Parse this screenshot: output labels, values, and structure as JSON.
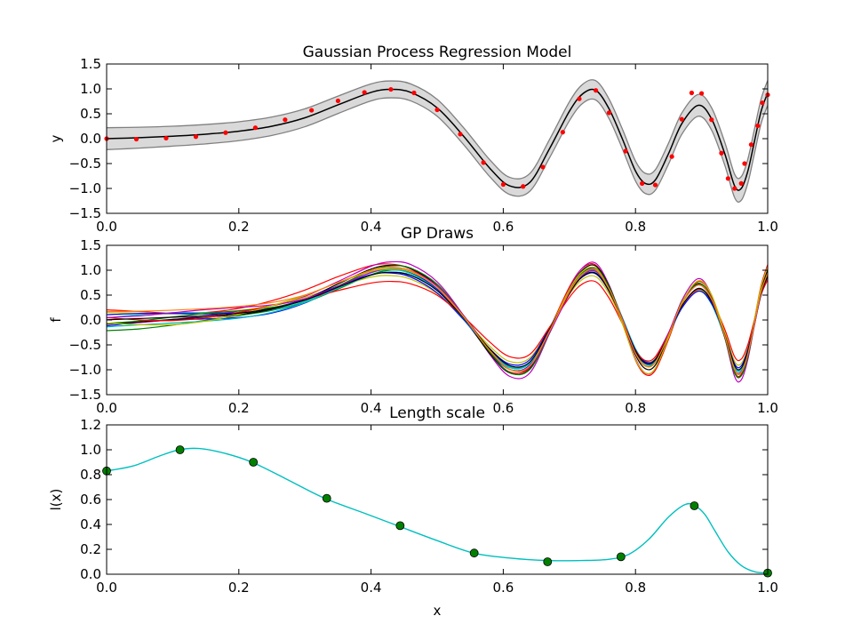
{
  "colors": {
    "mean": "#000000",
    "band_fill": "#d9d9d9",
    "band_edge": "#808080",
    "observations": "#ff0000",
    "length_curve": "#00bfbf",
    "length_points": "#008000",
    "draws": [
      "#0000ff",
      "#008000",
      "#ff0000",
      "#00bfbf",
      "#bf00bf",
      "#bfbf00",
      "#000000",
      "#0000ff",
      "#008000",
      "#ff0000",
      "#00bfbf",
      "#bf00bf",
      "#bfbf00",
      "#000000",
      "#ff7f0e"
    ]
  },
  "chart_data": [
    {
      "type": "line",
      "title": "Gaussian Process Regression Model",
      "xlabel": "",
      "ylabel": "y",
      "xlim": [
        0,
        1
      ],
      "ylim": [
        -1.5,
        1.5
      ],
      "xticks": [
        "0.0",
        "0.2",
        "0.4",
        "0.6",
        "0.8",
        "1.0"
      ],
      "yticks": [
        "−1.5",
        "−1.0",
        "−0.5",
        "0.0",
        "0.5",
        "1.0",
        "1.5"
      ],
      "mean": {
        "x": [
          0,
          0.05,
          0.1,
          0.15,
          0.2,
          0.25,
          0.3,
          0.35,
          0.4,
          0.43,
          0.46,
          0.5,
          0.54,
          0.58,
          0.61,
          0.64,
          0.67,
          0.7,
          0.72,
          0.74,
          0.76,
          0.78,
          0.8,
          0.815,
          0.83,
          0.85,
          0.87,
          0.895,
          0.915,
          0.935,
          0.95,
          0.96,
          0.97,
          0.98,
          0.99,
          1.0
        ],
        "y": [
          0.0,
          0.02,
          0.05,
          0.09,
          0.15,
          0.25,
          0.42,
          0.68,
          0.93,
          0.99,
          0.93,
          0.62,
          0.05,
          -0.6,
          -0.95,
          -0.88,
          -0.2,
          0.55,
          0.9,
          0.97,
          0.6,
          0.0,
          -0.65,
          -0.9,
          -0.83,
          -0.3,
          0.3,
          0.67,
          0.4,
          -0.3,
          -0.95,
          -1.0,
          -0.65,
          -0.05,
          0.55,
          0.92
        ]
      },
      "band_halfwidth": {
        "x": [
          0,
          0.1,
          0.2,
          0.3,
          0.4,
          0.5,
          0.6,
          0.7,
          0.8,
          0.9,
          1.0
        ],
        "y": [
          0.22,
          0.2,
          0.19,
          0.18,
          0.17,
          0.17,
          0.17,
          0.19,
          0.2,
          0.22,
          0.25
        ]
      },
      "observations": {
        "x": [
          0.0,
          0.045,
          0.09,
          0.135,
          0.18,
          0.225,
          0.27,
          0.31,
          0.35,
          0.39,
          0.43,
          0.465,
          0.5,
          0.535,
          0.57,
          0.6,
          0.63,
          0.66,
          0.69,
          0.715,
          0.74,
          0.76,
          0.785,
          0.81,
          0.83,
          0.855,
          0.87,
          0.885,
          0.9,
          0.915,
          0.93,
          0.94,
          0.95,
          0.96,
          0.965,
          0.975,
          0.985,
          0.992,
          1.0
        ],
        "y": [
          0.0,
          -0.01,
          0.01,
          0.04,
          0.12,
          0.22,
          0.38,
          0.57,
          0.76,
          0.93,
          0.99,
          0.92,
          0.58,
          0.09,
          -0.48,
          -0.92,
          -0.96,
          -0.57,
          0.13,
          0.8,
          0.97,
          0.52,
          -0.25,
          -0.9,
          -0.93,
          -0.36,
          0.39,
          0.92,
          0.91,
          0.38,
          -0.29,
          -0.8,
          -1.0,
          -0.9,
          -0.5,
          -0.12,
          0.26,
          0.72,
          0.88
        ]
      }
    },
    {
      "type": "line",
      "title": "GP Draws",
      "xlabel": "",
      "ylabel": "f",
      "xlim": [
        0,
        1
      ],
      "ylim": [
        -1.5,
        1.5
      ],
      "xticks": [
        "0.0",
        "0.2",
        "0.4",
        "0.6",
        "0.8",
        "1.0"
      ],
      "yticks": [
        "−1.5",
        "−1.0",
        "−0.5",
        "0.0",
        "0.5",
        "1.0",
        "1.5"
      ],
      "base_curve": {
        "x": [
          0,
          0.05,
          0.1,
          0.15,
          0.2,
          0.25,
          0.3,
          0.35,
          0.4,
          0.43,
          0.46,
          0.5,
          0.54,
          0.58,
          0.61,
          0.64,
          0.67,
          0.7,
          0.72,
          0.74,
          0.76,
          0.78,
          0.8,
          0.815,
          0.83,
          0.85,
          0.87,
          0.895,
          0.915,
          0.935,
          0.95,
          0.96,
          0.97,
          0.98,
          0.99,
          1.0
        ],
        "y": [
          0.0,
          0.02,
          0.05,
          0.09,
          0.15,
          0.25,
          0.42,
          0.68,
          0.93,
          0.99,
          0.93,
          0.62,
          0.05,
          -0.6,
          -0.95,
          -0.88,
          -0.2,
          0.55,
          0.9,
          0.97,
          0.6,
          0.0,
          -0.65,
          -0.9,
          -0.83,
          -0.3,
          0.3,
          0.67,
          0.4,
          -0.3,
          -0.95,
          -1.0,
          -0.65,
          -0.05,
          0.55,
          0.92
        ]
      },
      "draw_offsets": [
        {
          "offset": -0.12,
          "scale": 1.0,
          "wiggle": 0.05
        },
        {
          "offset": -0.18,
          "scale": 1.05,
          "wiggle": -0.04
        },
        {
          "offset": 0.15,
          "scale": 1.15,
          "wiggle": 0.06
        },
        {
          "offset": 0.05,
          "scale": 0.95,
          "wiggle": -0.06
        },
        {
          "offset": -0.05,
          "scale": 1.2,
          "wiggle": 0.03
        },
        {
          "offset": 0.12,
          "scale": 0.9,
          "wiggle": -0.03
        },
        {
          "offset": -0.08,
          "scale": 1.1,
          "wiggle": 0.02
        },
        {
          "offset": 0.08,
          "scale": 0.92,
          "wiggle": 0.04
        },
        {
          "offset": -0.02,
          "scale": 1.08,
          "wiggle": -0.05
        },
        {
          "offset": 0.02,
          "scale": 0.85,
          "wiggle": 0.07
        },
        {
          "offset": -0.15,
          "scale": 0.98,
          "wiggle": -0.02
        },
        {
          "offset": 0.1,
          "scale": 1.02,
          "wiggle": 0.05
        },
        {
          "offset": -0.1,
          "scale": 1.12,
          "wiggle": -0.07
        },
        {
          "offset": 0.0,
          "scale": 0.96,
          "wiggle": 0.01
        },
        {
          "offset": 0.18,
          "scale": 1.04,
          "wiggle": -0.01
        }
      ]
    },
    {
      "type": "line",
      "title": "Length scale",
      "xlabel": "x",
      "ylabel": "l(x)",
      "xlim": [
        0,
        1
      ],
      "ylim": [
        0,
        1.2
      ],
      "xticks": [
        "0.0",
        "0.2",
        "0.4",
        "0.6",
        "0.8",
        "1.0"
      ],
      "yticks": [
        "0.0",
        "0.2",
        "0.4",
        "0.6",
        "0.8",
        "1.0",
        "1.2"
      ],
      "curve": {
        "x": [
          0,
          0.04,
          0.08,
          0.11,
          0.14,
          0.18,
          0.22,
          0.27,
          0.33,
          0.39,
          0.44,
          0.5,
          0.555,
          0.61,
          0.667,
          0.72,
          0.76,
          0.79,
          0.82,
          0.85,
          0.875,
          0.89,
          0.905,
          0.92,
          0.94,
          0.96,
          0.98,
          1.0
        ],
        "y": [
          0.83,
          0.87,
          0.95,
          1.0,
          1.01,
          0.97,
          0.9,
          0.77,
          0.61,
          0.49,
          0.39,
          0.27,
          0.17,
          0.13,
          0.11,
          0.11,
          0.12,
          0.16,
          0.28,
          0.46,
          0.56,
          0.55,
          0.48,
          0.35,
          0.18,
          0.07,
          0.02,
          0.01
        ]
      },
      "points": {
        "x": [
          0.0,
          0.111,
          0.222,
          0.333,
          0.444,
          0.556,
          0.667,
          0.778,
          0.889,
          1.0
        ],
        "y": [
          0.83,
          1.0,
          0.9,
          0.61,
          0.39,
          0.17,
          0.1,
          0.14,
          0.55,
          0.01
        ]
      }
    }
  ]
}
